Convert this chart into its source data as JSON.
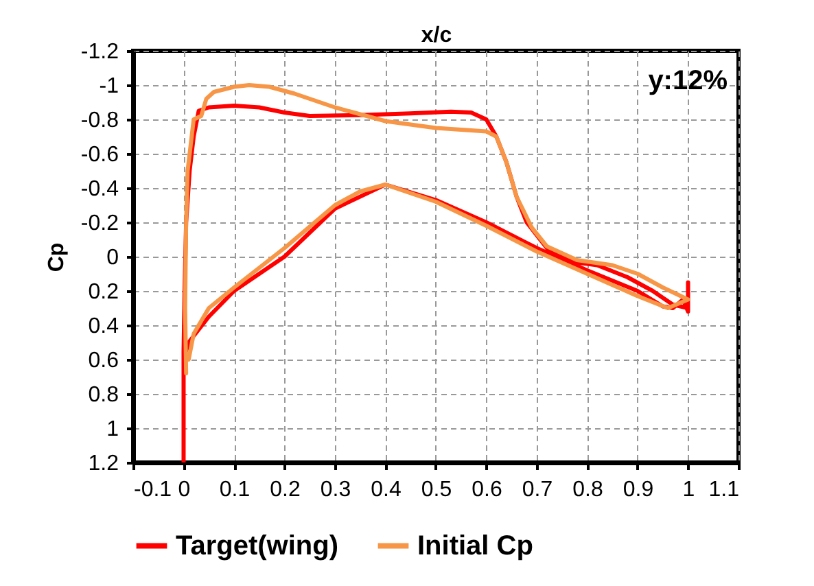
{
  "chart_data": {
    "type": "line",
    "xlabel": "x/c",
    "ylabel": "Cp",
    "annotations": [
      "y:12%"
    ],
    "xlim": [
      -0.1,
      1.1
    ],
    "xticks": [
      -0.1,
      0,
      0.1,
      0.2,
      0.3,
      0.4,
      0.5,
      0.6,
      0.7,
      0.8,
      0.9,
      1,
      1.1
    ],
    "ylim": [
      1.2,
      -1.2
    ],
    "yticks": [
      -1.2,
      -1,
      -0.8,
      -0.6,
      -0.4,
      -0.2,
      0,
      0.2,
      0.4,
      0.6,
      0.8,
      1,
      1.2
    ],
    "grid": true,
    "legend": "bottom",
    "line_style": "solid",
    "series": [
      {
        "name": "Target(wing)",
        "color": "#ff0000",
        "x": [
          0,
          0,
          0.002,
          0.005,
          0.012,
          0.02,
          0.03,
          0.05,
          0.1,
          0.15,
          0.2,
          0.25,
          0.35,
          0.45,
          0.53,
          0.57,
          0.6,
          0.62,
          0.64,
          0.66,
          0.68,
          0.72,
          0.77,
          0.82,
          0.88,
          0.93,
          0.97,
          1,
          1,
          1,
          0.99,
          0.97,
          0.95,
          0.9,
          0.8,
          0.7,
          0.6,
          0.5,
          0.4,
          0.3,
          0.2,
          0.1,
          0.05,
          0.01,
          0.005
        ],
        "values": [
          1.2,
          0.55,
          0.2,
          -0.2,
          -0.5,
          -0.7,
          -0.85,
          -0.87,
          -0.88,
          -0.87,
          -0.84,
          -0.82,
          -0.825,
          -0.835,
          -0.845,
          -0.84,
          -0.8,
          -0.7,
          -0.55,
          -0.35,
          -0.2,
          -0.05,
          0.03,
          0.05,
          0.12,
          0.2,
          0.28,
          0.3,
          0.15,
          0.32,
          0.25,
          0.3,
          0.29,
          0.2,
          0.08,
          -0.05,
          -0.2,
          -0.33,
          -0.42,
          -0.28,
          0,
          0.2,
          0.35,
          0.5,
          0.55
        ]
      },
      {
        "name": "Initial Cp",
        "color": "#f79646",
        "x": [
          0.005,
          0.003,
          0.005,
          0.008,
          0.012,
          0.02,
          0.035,
          0.045,
          0.06,
          0.1,
          0.13,
          0.17,
          0.22,
          0.3,
          0.4,
          0.5,
          0.6,
          0.62,
          0.64,
          0.66,
          0.69,
          0.72,
          0.78,
          0.85,
          0.9,
          0.95,
          1,
          0.96,
          0.9,
          0.8,
          0.7,
          0.6,
          0.5,
          0.4,
          0.35,
          0.3,
          0.2,
          0.1,
          0.05,
          0.02,
          0.01
        ],
        "values": [
          0.68,
          0.3,
          -0.2,
          -0.5,
          -0.6,
          -0.8,
          -0.82,
          -0.92,
          -0.96,
          -0.99,
          -1.0,
          -0.99,
          -0.95,
          -0.87,
          -0.79,
          -0.75,
          -0.73,
          -0.7,
          -0.55,
          -0.35,
          -0.17,
          -0.06,
          0.02,
          0.05,
          0.1,
          0.18,
          0.25,
          0.3,
          0.23,
          0.1,
          -0.03,
          -0.18,
          -0.32,
          -0.42,
          -0.38,
          -0.3,
          -0.05,
          0.18,
          0.3,
          0.45,
          0.6
        ]
      }
    ]
  }
}
